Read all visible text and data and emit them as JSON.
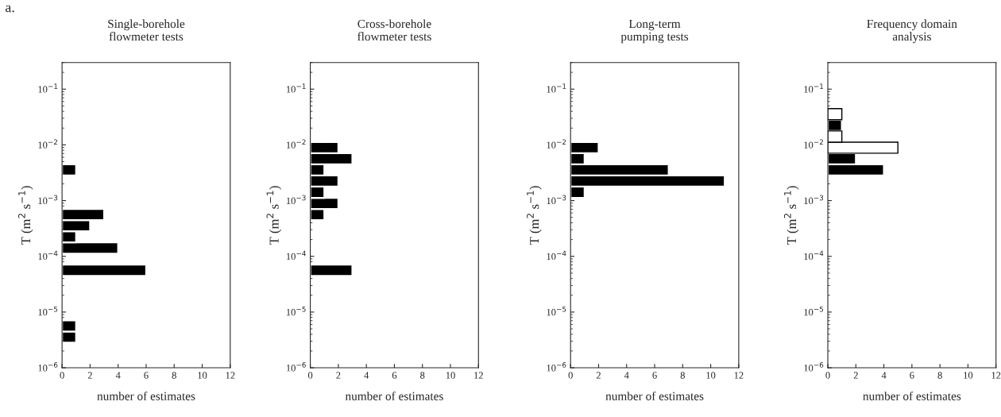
{
  "chart_data": [
    {
      "type": "histogram",
      "title": "Single-borehole\nflowmeter tests",
      "xlabel": "number of estimates",
      "ylabel": "T (m$^{2}$ s$^{−1}$)",
      "annotations": [
        "a."
      ],
      "bins": [
        2.82e-06,
        4.47e-06,
        7.08e-06,
        1.12e-05,
        1.78e-05,
        2.82e-05,
        4.47e-05,
        7.08e-05,
        0.000112,
        0.000178,
        0.000282,
        0.000447,
        0.000708,
        0.00112,
        0.00178,
        0.00282,
        0.00447
      ],
      "series": [
        {
          "color": "#000000",
          "values": [
            1,
            1,
            0,
            0,
            0,
            0,
            6,
            0,
            4,
            1,
            2,
            3,
            0,
            0,
            0,
            1
          ]
        }
      ],
      "orientation": "horizontal",
      "log": "y",
      "xlim": [
        0,
        12
      ],
      "xticks": [
        0,
        2,
        4,
        6,
        8,
        10,
        12
      ],
      "ylim": [
        1e-06,
        0.3
      ],
      "yticks": [
        {
          "value": 1e-06,
          "label": "10$^{−6}$"
        },
        {
          "value": 1e-05,
          "label": "10$^{−5}$"
        },
        {
          "value": 0.0001,
          "label": "10$^{−4}$"
        },
        {
          "value": 0.001,
          "label": "10$^{−3}$"
        },
        {
          "value": 0.01,
          "label": "10$^{−2}$"
        },
        {
          "value": 0.1,
          "label": "10$^{−1}$"
        }
      ],
      "grid": false
    },
    {
      "type": "histogram",
      "title": "Cross-borehole\nflowmeter tests",
      "xlabel": "number of estimates",
      "ylabel": "T (m$^{2}$ s$^{−1}$)",
      "bins": [
        4.47e-05,
        7.08e-05,
        0.000112,
        0.000178,
        0.000282,
        0.000447,
        0.000708,
        0.00112,
        0.00178,
        0.00282,
        0.00447,
        0.00708,
        0.0112
      ],
      "series": [
        {
          "color": "#000000",
          "values": [
            3,
            0,
            0,
            0,
            0,
            1,
            2,
            1,
            2,
            1,
            3,
            2
          ]
        }
      ],
      "orientation": "horizontal",
      "log": "y",
      "xlim": [
        0,
        12
      ],
      "xticks": [
        0,
        2,
        4,
        6,
        8,
        10,
        12
      ],
      "ylim": [
        1e-06,
        0.3
      ],
      "yticks": [
        {
          "value": 1e-06,
          "label": "10$^{−6}$"
        },
        {
          "value": 1e-05,
          "label": "10$^{−5}$"
        },
        {
          "value": 0.0001,
          "label": "10$^{−4}$"
        },
        {
          "value": 0.001,
          "label": "10$^{−3}$"
        },
        {
          "value": 0.01,
          "label": "10$^{−2}$"
        },
        {
          "value": 0.1,
          "label": "10$^{−1}$"
        }
      ],
      "grid": false
    },
    {
      "type": "histogram",
      "title": "Long-term\npumping tests",
      "xlabel": "number of estimates",
      "ylabel": "T (m$^{2}$ s$^{−1}$)",
      "bins": [
        0.00112,
        0.00178,
        0.00282,
        0.00447,
        0.00708,
        0.0112
      ],
      "series": [
        {
          "color": "#000000",
          "values": [
            1,
            11,
            7,
            1,
            2
          ]
        }
      ],
      "orientation": "horizontal",
      "log": "y",
      "xlim": [
        0,
        12
      ],
      "xticks": [
        0,
        2,
        4,
        6,
        8,
        10,
        12
      ],
      "ylim": [
        1e-06,
        0.3
      ],
      "yticks": [
        {
          "value": 1e-06,
          "label": "10$^{−6}$"
        },
        {
          "value": 1e-05,
          "label": "10$^{−5}$"
        },
        {
          "value": 0.0001,
          "label": "10$^{−4}$"
        },
        {
          "value": 0.001,
          "label": "10$^{−3}$"
        },
        {
          "value": 0.01,
          "label": "10$^{−2}$"
        },
        {
          "value": 0.1,
          "label": "10$^{−1}$"
        }
      ],
      "grid": false
    },
    {
      "type": "histogram",
      "title": "Frequency domain\nanalysis",
      "xlabel": "number of estimates",
      "ylabel": "T (m$^{2}$ s$^{−1}$)",
      "bins": [
        0.00282,
        0.00447,
        0.00708,
        0.0112,
        0.0178,
        0.0282,
        0.0447
      ],
      "series": [
        {
          "color": "#000000",
          "values": [
            4,
            2,
            0,
            0,
            1,
            0
          ]
        },
        {
          "color": "#ffffff",
          "values": [
            0,
            0,
            5,
            1,
            0,
            1
          ]
        }
      ],
      "orientation": "horizontal",
      "log": "y",
      "xlim": [
        0,
        12
      ],
      "xticks": [
        0,
        2,
        4,
        6,
        8,
        10,
        12
      ],
      "ylim": [
        1e-06,
        0.3
      ],
      "yticks": [
        {
          "value": 1e-06,
          "label": "10$^{−6}$"
        },
        {
          "value": 1e-05,
          "label": "10$^{−5}$"
        },
        {
          "value": 0.0001,
          "label": "10$^{−4}$"
        },
        {
          "value": 0.001,
          "label": "10$^{−3}$"
        },
        {
          "value": 0.01,
          "label": "10$^{−2}$"
        },
        {
          "value": 0.1,
          "label": "10$^{−1}$"
        }
      ],
      "grid": false
    }
  ]
}
